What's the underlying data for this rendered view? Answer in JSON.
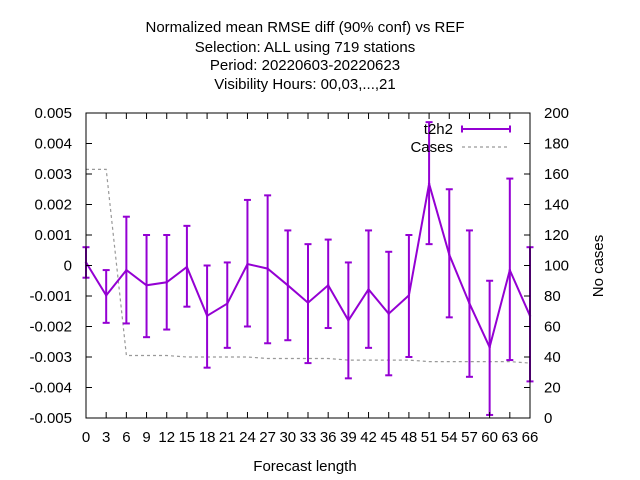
{
  "chart_data": {
    "type": "line",
    "title_lines": [
      "Normalized mean RMSE diff (90% conf) vs REF",
      "Selection: ALL using   719 stations",
      "Period: 20220603-20220623",
      "Visibility   Hours:  00,03,...,21"
    ],
    "xlabel": "Forecast length",
    "ylabel": "",
    "y2label": "No cases",
    "xlim": [
      0,
      66
    ],
    "ylim": [
      -0.005,
      0.005
    ],
    "y2lim": [
      0,
      200
    ],
    "x_ticks": [
      0,
      3,
      6,
      9,
      12,
      15,
      18,
      21,
      24,
      27,
      30,
      33,
      36,
      39,
      42,
      45,
      48,
      51,
      54,
      57,
      60,
      63,
      66
    ],
    "y_ticks": [
      -0.005,
      -0.004,
      -0.003,
      -0.002,
      -0.001,
      0,
      0.001,
      0.002,
      0.003,
      0.004,
      0.005
    ],
    "y_tick_labels": [
      "-0.005",
      "-0.004",
      "-0.003",
      "-0.002",
      "-0.001",
      "0",
      "0.001",
      "0.002",
      "0.003",
      "0.004",
      "0.005"
    ],
    "y2_ticks": [
      0,
      20,
      40,
      60,
      80,
      100,
      120,
      140,
      160,
      180,
      200
    ],
    "grid": false,
    "legend_position": "top-right",
    "series": [
      {
        "name": "t2h2",
        "axis": "left",
        "color": "#9400d3",
        "style": "line-errorbars",
        "x": [
          0,
          3,
          6,
          9,
          12,
          15,
          18,
          21,
          24,
          27,
          30,
          33,
          36,
          39,
          42,
          45,
          48,
          51,
          54,
          57,
          60,
          63,
          66
        ],
        "y": [
          0.0001,
          -0.00098,
          -0.00015,
          -0.00065,
          -0.00055,
          -5e-05,
          -0.00165,
          -0.00125,
          5e-05,
          -0.0001,
          -0.00065,
          -0.00122,
          -0.00065,
          -0.0018,
          -0.00078,
          -0.00158,
          -0.00098,
          0.00268,
          0.00035,
          -0.00125,
          -0.00268,
          -0.00015,
          -0.00165
        ],
        "err_low": [
          -0.0004,
          -0.00188,
          -0.0019,
          -0.00235,
          -0.0021,
          -0.00135,
          -0.00335,
          -0.0027,
          -0.002,
          -0.00255,
          -0.00245,
          -0.0032,
          -0.00205,
          -0.0037,
          -0.0027,
          -0.0036,
          -0.003,
          0.0007,
          -0.0017,
          -0.00365,
          -0.0049,
          -0.0031,
          -0.0038
        ],
        "err_high": [
          0.0006,
          -0.00015,
          0.0016,
          0.001,
          0.001,
          0.0013,
          0.0,
          0.0001,
          0.00215,
          0.0023,
          0.00115,
          0.0007,
          0.00085,
          0.0001,
          0.00115,
          0.00045,
          0.001,
          0.0047,
          0.0025,
          0.00115,
          -0.0005,
          0.00285,
          0.0006
        ]
      },
      {
        "name": "Cases",
        "axis": "right",
        "color": "#999999",
        "style": "dashed",
        "x": [
          0,
          3,
          6,
          9,
          12,
          15,
          18,
          21,
          24,
          27,
          30,
          33,
          36,
          39,
          42,
          45,
          48,
          51,
          54,
          57,
          60,
          63,
          66
        ],
        "y": [
          163,
          163,
          41,
          41,
          41,
          40,
          40,
          40,
          40,
          39,
          39,
          39,
          39,
          38,
          38,
          38,
          38,
          37,
          37,
          37,
          37,
          37,
          36
        ]
      }
    ]
  }
}
